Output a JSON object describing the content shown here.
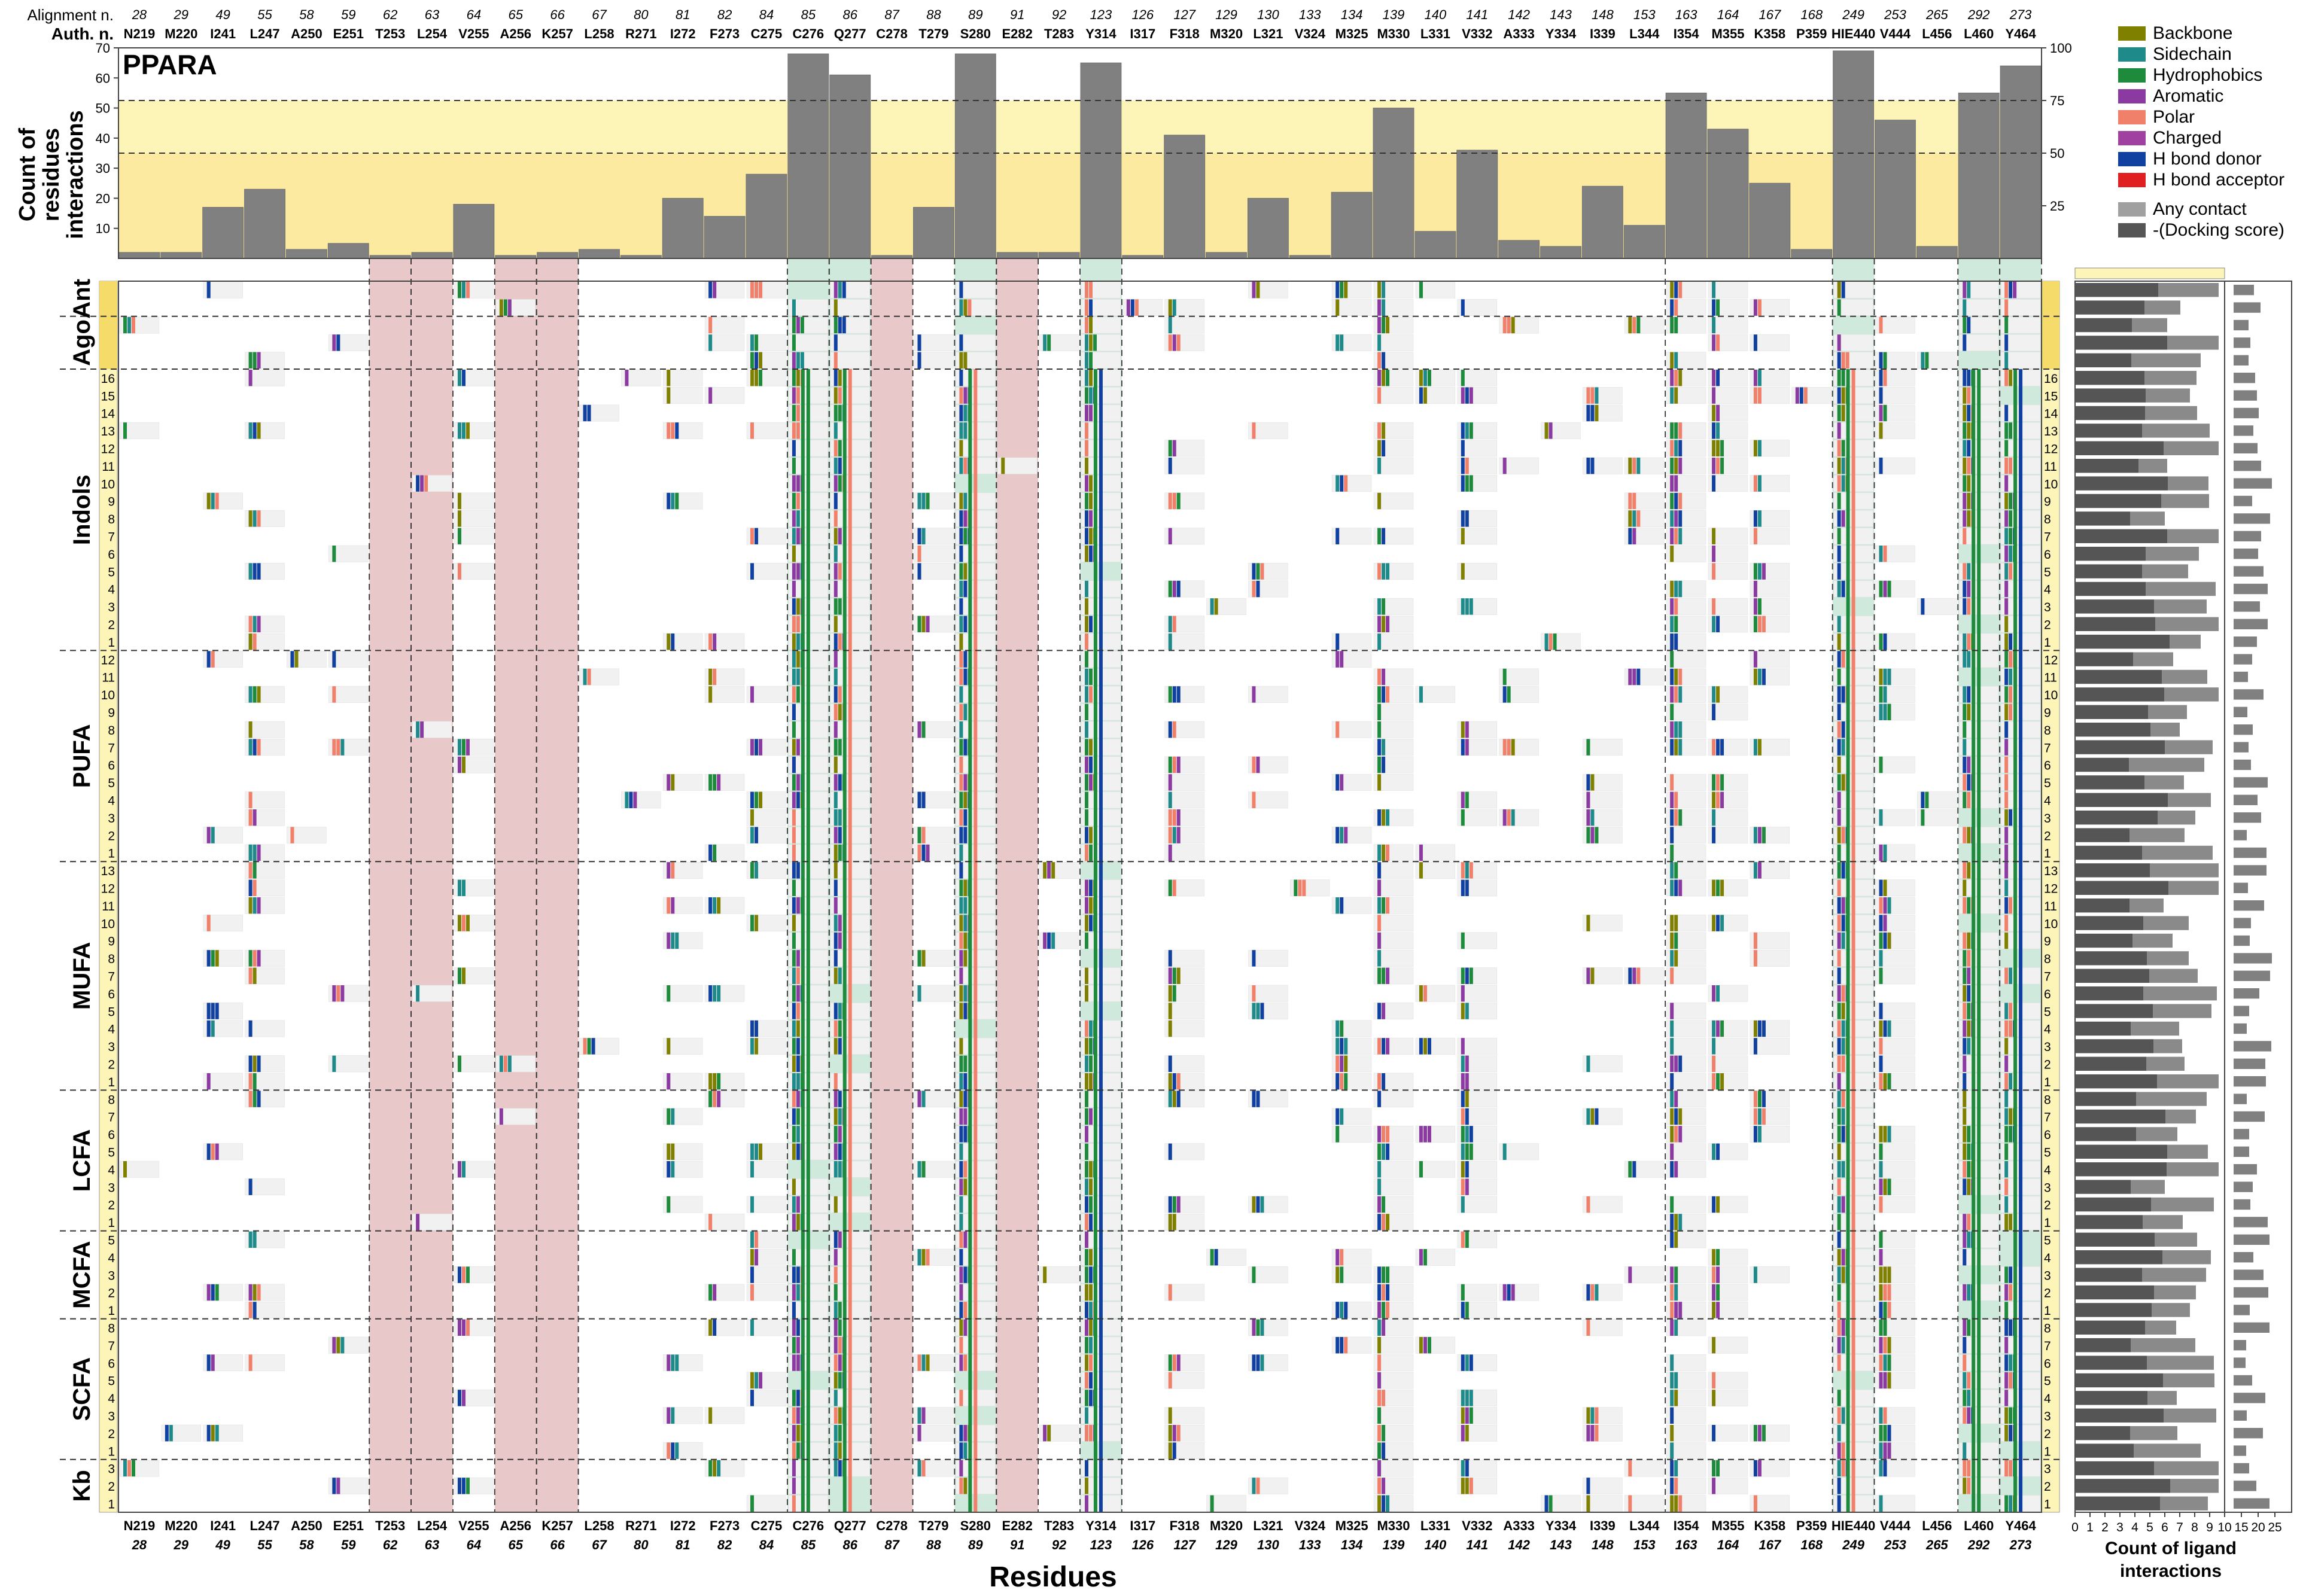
{
  "figure": {
    "protein": "PPARA",
    "row_label_alignment": "Alignment n.",
    "row_label_auth": "Auth. n.",
    "xlabel": "Residues",
    "top_ylabel_lines": [
      "Count of",
      "residues",
      "interactions"
    ],
    "right_xlabel_lines": [
      "Count of ligand",
      "interactions"
    ]
  },
  "legend": [
    {
      "label": "Backbone",
      "color": "#808000"
    },
    {
      "label": "Sidechain",
      "color": "#1f8a8a"
    },
    {
      "label": "Hydrophobics",
      "color": "#1e8a3c"
    },
    {
      "label": "Aromatic",
      "color": "#8a3aa0"
    },
    {
      "label": "Polar",
      "color": "#f0806a"
    },
    {
      "label": "Charged",
      "color": "#a040a0"
    },
    {
      "label": "H bond donor",
      "color": "#1040a0"
    },
    {
      "label": "H bond acceptor",
      "color": "#e02020"
    },
    {
      "label": "Any contact",
      "color": "#a0a0a0"
    },
    {
      "label": "-(Docking score)",
      "color": "#555555"
    }
  ],
  "chart_data": [
    {
      "type": "bar",
      "categories": [
        "N219",
        "M220",
        "I241",
        "L247",
        "A250",
        "E251",
        "T253",
        "L254",
        "V255",
        "A256",
        "K257",
        "L258",
        "R271",
        "I272",
        "F273",
        "C275",
        "C276",
        "Q277",
        "C278",
        "T279",
        "S280",
        "E282",
        "T283",
        "Y314",
        "I317",
        "F318",
        "M320",
        "L321",
        "V324",
        "M325",
        "M330",
        "L331",
        "V332",
        "A333",
        "Y334",
        "I339",
        "L344",
        "I354",
        "M355",
        "K358",
        "P359",
        "HIE440",
        "V444",
        "L456",
        "L460",
        "Y464"
      ],
      "alignment": [
        "28",
        "29",
        "49",
        "55",
        "58",
        "59",
        "62",
        "63",
        "64",
        "65",
        "66",
        "67",
        "80",
        "81",
        "82",
        "84",
        "85",
        "86",
        "87",
        "88",
        "89",
        "91",
        "92",
        "123",
        "126",
        "127",
        "129",
        "130",
        "133",
        "134",
        "139",
        "140",
        "141",
        "142",
        "143",
        "148",
        "153",
        "163",
        "164",
        "167",
        "168",
        "249",
        "253",
        "265",
        "292",
        "273"
      ],
      "values": [
        2,
        2,
        17,
        23,
        3,
        5,
        1,
        2,
        18,
        1,
        2,
        3,
        1,
        20,
        14,
        28,
        68,
        61,
        1,
        17,
        68,
        2,
        2,
        65,
        1,
        41,
        2,
        20,
        1,
        22,
        50,
        9,
        36,
        6,
        4,
        24,
        11,
        55,
        43,
        25,
        3,
        69,
        46,
        4,
        55,
        64
      ],
      "ylim_left": [
        0,
        70
      ],
      "yticks_left": [
        10,
        20,
        30,
        40,
        50,
        60,
        70
      ],
      "yticks_right": [
        "25",
        "50",
        "75",
        "100"
      ],
      "thresholds_percent": [
        50,
        75
      ],
      "highlight_red": [
        "T253",
        "L254",
        "A256",
        "K257",
        "C278",
        "E282"
      ],
      "highlight_green": [
        "C276",
        "Q277",
        "S280",
        "Y314",
        "HIE440",
        "L460",
        "Y464"
      ]
    },
    {
      "type": "heatmap",
      "groups": [
        {
          "name": "Ant",
          "rows": 2
        },
        {
          "name": "Ago",
          "rows": 3
        },
        {
          "name": "Indols",
          "rows": 16
        },
        {
          "name": "PUFA",
          "rows": 12
        },
        {
          "name": "MUFA",
          "rows": 13
        },
        {
          "name": "LCFA",
          "rows": 8
        },
        {
          "name": "MCFA",
          "rows": 5
        },
        {
          "name": "SCFA",
          "rows": 8
        },
        {
          "name": "Kb",
          "rows": 3
        }
      ],
      "row_numbers": [
        "1",
        "2",
        "3",
        "4",
        "5",
        "6",
        "7",
        "8",
        "9",
        "10",
        "11",
        "12",
        "13",
        "14",
        "15",
        "16"
      ],
      "right_axis_ticks": [
        "0",
        "1",
        "2",
        "3",
        "4",
        "5",
        "6",
        "7",
        "8",
        "9",
        "10",
        "15",
        "20",
        "25"
      ]
    }
  ]
}
